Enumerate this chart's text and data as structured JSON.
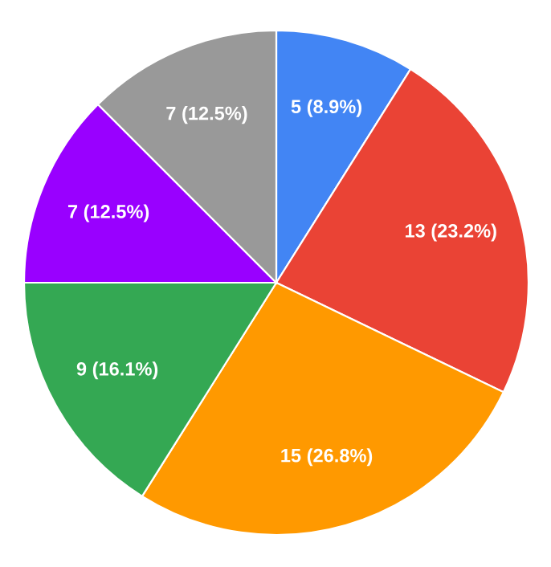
{
  "chart_data": {
    "type": "pie",
    "categories": [
      null,
      null,
      null,
      null,
      null,
      null
    ],
    "values": [
      5,
      13,
      15,
      9,
      7,
      7
    ],
    "colors": [
      "#4285f4",
      "#ea4335",
      "#ff9900",
      "#34a853",
      "#9900ff",
      "#999999"
    ],
    "value_labels": [
      "5 (8.9%)",
      "13 (23.2%)",
      "15 (26.8%)",
      "9 (16.1%)",
      "7 (12.5%)",
      "7 (12.5%)"
    ],
    "legend": false
  }
}
